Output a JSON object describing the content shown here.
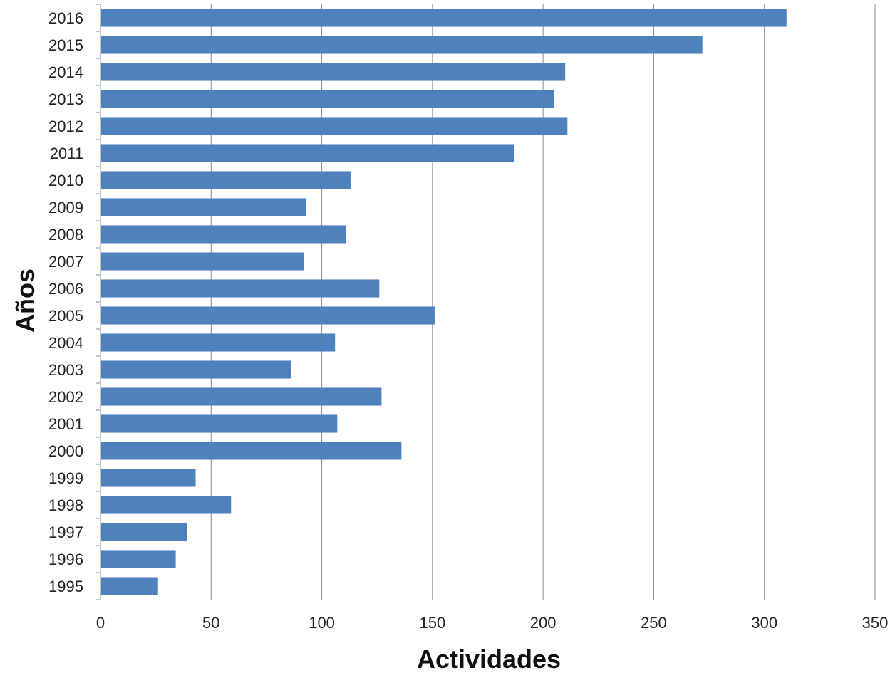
{
  "chart_data": {
    "type": "bar",
    "orientation": "horizontal",
    "xlabel": "Actividades",
    "ylabel": "Años",
    "xlim": [
      0,
      350
    ],
    "x_ticks": [
      0,
      50,
      100,
      150,
      200,
      250,
      300,
      350
    ],
    "grid": true,
    "grid_axis": "x",
    "bar_color": "#4f81bd",
    "categories": [
      "2016",
      "2015",
      "2014",
      "2013",
      "2012",
      "2011",
      "2010",
      "2009",
      "2008",
      "2007",
      "2006",
      "2005",
      "2004",
      "2003",
      "2002",
      "2001",
      "2000",
      "1999",
      "1998",
      "1997",
      "1996",
      "1995"
    ],
    "values": [
      310,
      272,
      210,
      205,
      211,
      187,
      113,
      93,
      111,
      92,
      126,
      151,
      106,
      86,
      127,
      107,
      136,
      43,
      59,
      39,
      34,
      26
    ]
  }
}
